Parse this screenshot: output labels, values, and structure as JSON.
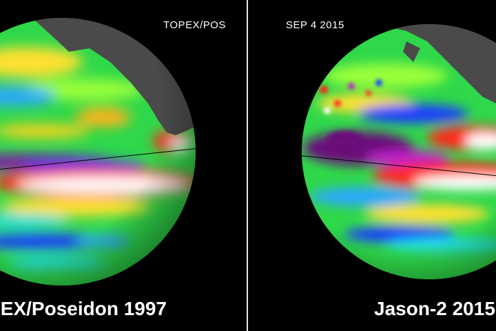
{
  "left_panel": {
    "top_label": "TOPEX/POS",
    "caption": "EX/Poseidon 1997"
  },
  "right_panel": {
    "top_label": "SEP  4  2015",
    "caption": "Jason-2 2015"
  },
  "colors": {
    "background": "#000000",
    "land": "#4a4a4a",
    "divider": "#e8e8e8",
    "ocean_base": "#2fd84a",
    "warm_anomaly": "#ff2a1a",
    "hot_anomaly": "#ffffff",
    "cool_anomaly": "#1a3cff",
    "cold_anomaly": "#6a0a7a"
  }
}
